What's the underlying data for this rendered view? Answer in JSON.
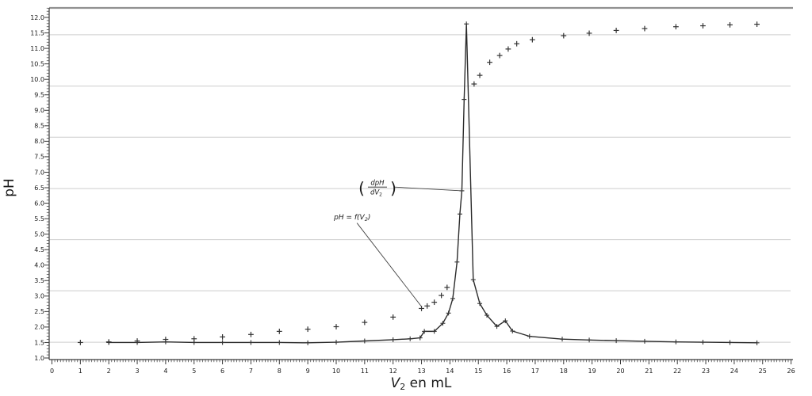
{
  "chart_data": {
    "type": "line+scatter",
    "title": "",
    "ylabel": "pH",
    "xlabel_parts": {
      "variable": "V",
      "subscript": "2",
      "rest": " en mL"
    },
    "xlim": [
      0,
      26
    ],
    "ylim": [
      0.95,
      12.3
    ],
    "x_tick_step": 1,
    "x_minor_step": 0.1,
    "y_tick_min": 1.0,
    "y_tick_max": 12.0,
    "y_tick_step": 0.5,
    "y_minor_step": 0.1,
    "grid": "horizontal-only",
    "gridlines_pH": [
      11.44,
      9.78,
      8.13,
      6.47,
      4.82,
      3.17,
      1.51
    ],
    "legend": "none",
    "series": [
      {
        "name": "pH = f(V2)",
        "type": "scatter",
        "marker": "plus",
        "points": [
          [
            1,
            1.5
          ],
          [
            2,
            1.52
          ],
          [
            3,
            1.55
          ],
          [
            4,
            1.6
          ],
          [
            5,
            1.62
          ],
          [
            6,
            1.68
          ],
          [
            7,
            1.76
          ],
          [
            8,
            1.86
          ],
          [
            9,
            1.93
          ],
          [
            10,
            2.01
          ],
          [
            11,
            2.15
          ],
          [
            12,
            2.32
          ],
          [
            13,
            2.6
          ],
          [
            13.2,
            2.68
          ],
          [
            13.45,
            2.8
          ],
          [
            13.7,
            3.02
          ],
          [
            13.9,
            3.28
          ],
          [
            14.85,
            9.85
          ],
          [
            15.05,
            10.13
          ],
          [
            15.4,
            10.55
          ],
          [
            15.75,
            10.77
          ],
          [
            16.05,
            10.98
          ],
          [
            16.35,
            11.15
          ],
          [
            16.9,
            11.28
          ],
          [
            18,
            11.41
          ],
          [
            18.9,
            11.49
          ],
          [
            19.85,
            11.58
          ],
          [
            20.85,
            11.64
          ],
          [
            21.95,
            11.7
          ],
          [
            22.9,
            11.73
          ],
          [
            23.85,
            11.76
          ],
          [
            24.8,
            11.78
          ]
        ]
      },
      {
        "name": "dpH/dV2",
        "type": "line",
        "marker": "plus",
        "points": [
          [
            2,
            1.5
          ],
          [
            3,
            1.5
          ],
          [
            4,
            1.52
          ],
          [
            5,
            1.5
          ],
          [
            6,
            1.5
          ],
          [
            7,
            1.5
          ],
          [
            8,
            1.5
          ],
          [
            9,
            1.49
          ],
          [
            10,
            1.51
          ],
          [
            11,
            1.55
          ],
          [
            12,
            1.59
          ],
          [
            12.6,
            1.62
          ],
          [
            12.95,
            1.65
          ],
          [
            13.1,
            1.86
          ],
          [
            13.45,
            1.86
          ],
          [
            13.75,
            2.12
          ],
          [
            13.95,
            2.45
          ],
          [
            14.1,
            2.92
          ],
          [
            14.25,
            4.1
          ],
          [
            14.35,
            5.65
          ],
          [
            14.42,
            6.4
          ],
          [
            14.5,
            9.35
          ],
          [
            14.58,
            11.79
          ],
          [
            14.82,
            3.53
          ],
          [
            15.05,
            2.76
          ],
          [
            15.3,
            2.38
          ],
          [
            15.65,
            2.02
          ],
          [
            15.95,
            2.2
          ],
          [
            16.2,
            1.87
          ],
          [
            16.8,
            1.7
          ],
          [
            17.95,
            1.61
          ],
          [
            18.9,
            1.58
          ],
          [
            19.85,
            1.56
          ],
          [
            20.85,
            1.54
          ],
          [
            21.95,
            1.52
          ],
          [
            22.9,
            1.51
          ],
          [
            23.85,
            1.5
          ],
          [
            24.8,
            1.49
          ]
        ]
      }
    ],
    "annotations": [
      {
        "id": "derivative-label",
        "kind": "fraction",
        "open_paren": "(",
        "numerator": "dpH",
        "denominator": "dV",
        "denominator_sub": "2",
        "close_paren": ")",
        "pos": [
          11.45,
          6.5
        ],
        "leader_from": [
          12.05,
          6.52
        ],
        "leader_to": [
          14.42,
          6.4
        ]
      },
      {
        "id": "ph-curve-label",
        "kind": "text",
        "pre": "pH = f(V",
        "sub": "2",
        "post": ")",
        "pos": [
          9.92,
          5.48
        ],
        "leader_from": [
          10.73,
          5.36
        ],
        "leader_to": [
          13.0,
          2.66
        ]
      }
    ],
    "colors": {
      "line": "#2b2b2b",
      "marker": "#333333",
      "grid": "#cdcdcd",
      "spine": "#3a3a3a",
      "tick_text": "#1f1f1f",
      "top_border": "#909090",
      "annotation": "#222222"
    }
  }
}
